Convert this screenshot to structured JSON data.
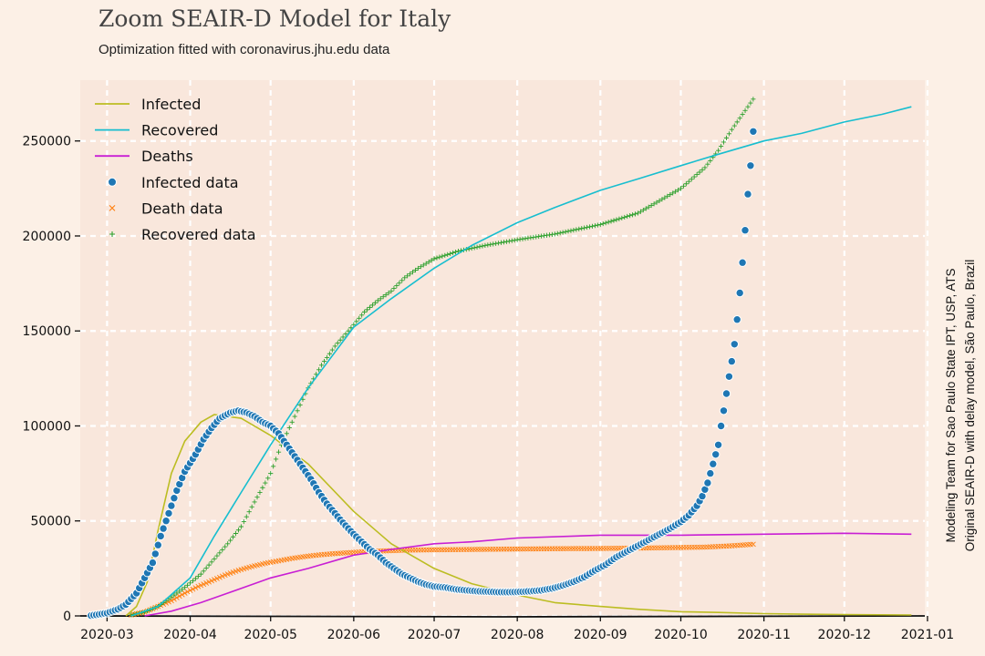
{
  "header": {
    "title": "Zoom SEAIR-D Model for Italy",
    "subtitle": "Optimization fitted with coronavirus.jhu.edu data"
  },
  "side_note": {
    "line1": "Modeling Team for Sao Paulo State IPT, USP, ATS",
    "line2": "Original SEAIR-D with delay model, São Paulo, Brazil"
  },
  "colors": {
    "background": "#fcf0e6",
    "plot_area": "#f9e7dc",
    "grid": "#ffffff",
    "infected_model": "#bcbd22",
    "recovered_model": "#17becf",
    "deaths_model": "#c81fd4",
    "infected_data": "#1f77b4",
    "death_data": "#ff7f0e",
    "recovered_data": "#2ca02c"
  },
  "chart_data": {
    "type": "line",
    "title": "Zoom SEAIR-D Model for Italy",
    "subtitle": "Optimization fitted with coronavirus.jhu.edu data",
    "xlabel": "",
    "ylabel": "",
    "x_axis": {
      "min": "2020-02-20",
      "max": "2020-12-31",
      "tick_labels": [
        "2020-03",
        "2020-04",
        "2020-05",
        "2020-06",
        "2020-07",
        "2020-08",
        "2020-09",
        "2020-10",
        "2020-11",
        "2020-12",
        "2021-01"
      ],
      "tick_dates": [
        "2020-03-01",
        "2020-04-01",
        "2020-05-01",
        "2020-06-01",
        "2020-07-01",
        "2020-08-01",
        "2020-09-01",
        "2020-10-01",
        "2020-11-01",
        "2020-12-01",
        "2021-01-01"
      ]
    },
    "ylim": [
      0,
      282000
    ],
    "yticks": [
      0,
      50000,
      100000,
      150000,
      200000,
      250000
    ],
    "ytick_labels": [
      "0",
      "50000",
      "100000",
      "150000",
      "200000",
      "250000"
    ],
    "grid": true,
    "legend_position": "top-left",
    "series": [
      {
        "name": "Infected",
        "kind": "line",
        "points": [
          [
            "2020-03-08",
            0
          ],
          [
            "2020-03-12",
            5000
          ],
          [
            "2020-03-16",
            18000
          ],
          [
            "2020-03-20",
            45000
          ],
          [
            "2020-03-25",
            75000
          ],
          [
            "2020-03-30",
            92000
          ],
          [
            "2020-04-05",
            102000
          ],
          [
            "2020-04-10",
            106000
          ],
          [
            "2020-04-20",
            104000
          ],
          [
            "2020-05-01",
            95000
          ],
          [
            "2020-05-15",
            80000
          ],
          [
            "2020-06-01",
            55000
          ],
          [
            "2020-06-15",
            38000
          ],
          [
            "2020-07-01",
            25000
          ],
          [
            "2020-07-15",
            17000
          ],
          [
            "2020-08-01",
            11000
          ],
          [
            "2020-08-15",
            7000
          ],
          [
            "2020-09-01",
            5000
          ],
          [
            "2020-09-15",
            3500
          ],
          [
            "2020-10-01",
            2200
          ],
          [
            "2020-10-15",
            1800
          ],
          [
            "2020-11-01",
            1200
          ],
          [
            "2020-11-15",
            900
          ],
          [
            "2020-12-01",
            700
          ],
          [
            "2020-12-26",
            500
          ]
        ]
      },
      {
        "name": "Recovered",
        "kind": "line",
        "points": [
          [
            "2020-03-10",
            0
          ],
          [
            "2020-03-20",
            5000
          ],
          [
            "2020-04-01",
            20000
          ],
          [
            "2020-04-10",
            42000
          ],
          [
            "2020-04-20",
            65000
          ],
          [
            "2020-05-01",
            90000
          ],
          [
            "2020-05-15",
            120000
          ],
          [
            "2020-06-01",
            152000
          ],
          [
            "2020-06-15",
            167000
          ],
          [
            "2020-07-01",
            183000
          ],
          [
            "2020-07-15",
            195000
          ],
          [
            "2020-08-01",
            207000
          ],
          [
            "2020-08-15",
            215000
          ],
          [
            "2020-09-01",
            224000
          ],
          [
            "2020-09-15",
            230000
          ],
          [
            "2020-10-01",
            237000
          ],
          [
            "2020-10-15",
            243000
          ],
          [
            "2020-11-01",
            250000
          ],
          [
            "2020-11-15",
            254000
          ],
          [
            "2020-12-01",
            260000
          ],
          [
            "2020-12-15",
            264000
          ],
          [
            "2020-12-26",
            268000
          ]
        ]
      },
      {
        "name": "Deaths",
        "kind": "line",
        "points": [
          [
            "2020-03-15",
            0
          ],
          [
            "2020-03-25",
            2500
          ],
          [
            "2020-04-05",
            7000
          ],
          [
            "2020-04-15",
            12000
          ],
          [
            "2020-05-01",
            20000
          ],
          [
            "2020-05-15",
            25000
          ],
          [
            "2020-06-01",
            32000
          ],
          [
            "2020-06-15",
            35000
          ],
          [
            "2020-07-01",
            38000
          ],
          [
            "2020-07-15",
            39000
          ],
          [
            "2020-08-01",
            41000
          ],
          [
            "2020-09-01",
            42500
          ],
          [
            "2020-10-01",
            42500
          ],
          [
            "2020-11-01",
            43000
          ],
          [
            "2020-12-01",
            43500
          ],
          [
            "2020-12-26",
            43000
          ]
        ]
      },
      {
        "name": "Infected data",
        "kind": "scatter",
        "marker": "circle",
        "points": [
          [
            "2020-02-24",
            200
          ],
          [
            "2020-03-01",
            1500
          ],
          [
            "2020-03-05",
            3500
          ],
          [
            "2020-03-08",
            6000
          ],
          [
            "2020-03-10",
            9000
          ],
          [
            "2020-03-12",
            12000
          ],
          [
            "2020-03-15",
            20000
          ],
          [
            "2020-03-18",
            28000
          ],
          [
            "2020-03-21",
            42000
          ],
          [
            "2020-03-24",
            54000
          ],
          [
            "2020-03-27",
            66000
          ],
          [
            "2020-03-30",
            76000
          ],
          [
            "2020-04-03",
            85000
          ],
          [
            "2020-04-06",
            93000
          ],
          [
            "2020-04-09",
            99000
          ],
          [
            "2020-04-12",
            104000
          ],
          [
            "2020-04-16",
            107000
          ],
          [
            "2020-04-19",
            108000
          ],
          [
            "2020-04-22",
            107000
          ],
          [
            "2020-04-25",
            105000
          ],
          [
            "2020-04-28",
            102000
          ],
          [
            "2020-05-01",
            100000
          ],
          [
            "2020-05-04",
            96000
          ],
          [
            "2020-05-07",
            90000
          ],
          [
            "2020-05-10",
            84000
          ],
          [
            "2020-05-13",
            78000
          ],
          [
            "2020-05-16",
            72000
          ],
          [
            "2020-05-19",
            65000
          ],
          [
            "2020-05-22",
            59000
          ],
          [
            "2020-05-25",
            54000
          ],
          [
            "2020-05-28",
            49000
          ],
          [
            "2020-06-01",
            43000
          ],
          [
            "2020-06-04",
            39000
          ],
          [
            "2020-06-07",
            35000
          ],
          [
            "2020-06-10",
            32000
          ],
          [
            "2020-06-13",
            28000
          ],
          [
            "2020-06-16",
            25000
          ],
          [
            "2020-06-19",
            22000
          ],
          [
            "2020-06-22",
            20000
          ],
          [
            "2020-06-25",
            18000
          ],
          [
            "2020-06-28",
            16500
          ],
          [
            "2020-07-01",
            15500
          ],
          [
            "2020-07-05",
            15000
          ],
          [
            "2020-07-09",
            14000
          ],
          [
            "2020-07-13",
            13500
          ],
          [
            "2020-07-17",
            13000
          ],
          [
            "2020-07-21",
            12800
          ],
          [
            "2020-07-25",
            12500
          ],
          [
            "2020-07-29",
            12500
          ],
          [
            "2020-08-02",
            12700
          ],
          [
            "2020-08-06",
            13000
          ],
          [
            "2020-08-10",
            13500
          ],
          [
            "2020-08-14",
            14500
          ],
          [
            "2020-08-18",
            16000
          ],
          [
            "2020-08-22",
            18000
          ],
          [
            "2020-08-26",
            20500
          ],
          [
            "2020-08-30",
            24000
          ],
          [
            "2020-09-03",
            27000
          ],
          [
            "2020-09-07",
            31000
          ],
          [
            "2020-09-11",
            34000
          ],
          [
            "2020-09-15",
            37000
          ],
          [
            "2020-09-19",
            40000
          ],
          [
            "2020-09-23",
            43000
          ],
          [
            "2020-09-27",
            46000
          ],
          [
            "2020-10-01",
            49500
          ],
          [
            "2020-10-04",
            53000
          ],
          [
            "2020-10-07",
            58000
          ],
          [
            "2020-10-09",
            63000
          ],
          [
            "2020-10-11",
            70000
          ],
          [
            "2020-10-13",
            80000
          ],
          [
            "2020-10-15",
            90000
          ],
          [
            "2020-10-16",
            100000
          ],
          [
            "2020-10-17",
            108000
          ],
          [
            "2020-10-18",
            117000
          ],
          [
            "2020-10-19",
            126000
          ],
          [
            "2020-10-20",
            134000
          ],
          [
            "2020-10-21",
            143000
          ],
          [
            "2020-10-22",
            156000
          ],
          [
            "2020-10-23",
            170000
          ],
          [
            "2020-10-24",
            186000
          ],
          [
            "2020-10-25",
            203000
          ],
          [
            "2020-10-26",
            222000
          ],
          [
            "2020-10-27",
            237000
          ],
          [
            "2020-10-28",
            255000
          ]
        ]
      },
      {
        "name": "Death data",
        "kind": "scatter",
        "marker": "x",
        "points": [
          [
            "2020-03-10",
            500
          ],
          [
            "2020-03-15",
            2000
          ],
          [
            "2020-03-20",
            5000
          ],
          [
            "2020-03-25",
            8000
          ],
          [
            "2020-03-30",
            12000
          ],
          [
            "2020-04-04",
            15500
          ],
          [
            "2020-04-09",
            18500
          ],
          [
            "2020-04-14",
            21500
          ],
          [
            "2020-04-19",
            24000
          ],
          [
            "2020-04-24",
            26000
          ],
          [
            "2020-04-29",
            27700
          ],
          [
            "2020-05-04",
            29000
          ],
          [
            "2020-05-09",
            30300
          ],
          [
            "2020-05-14",
            31300
          ],
          [
            "2020-05-19",
            32100
          ],
          [
            "2020-05-24",
            32700
          ],
          [
            "2020-05-29",
            33200
          ],
          [
            "2020-06-03",
            33600
          ],
          [
            "2020-06-10",
            34100
          ],
          [
            "2020-06-20",
            34600
          ],
          [
            "2020-07-01",
            34800
          ],
          [
            "2020-07-15",
            35000
          ],
          [
            "2020-08-01",
            35200
          ],
          [
            "2020-08-15",
            35400
          ],
          [
            "2020-09-01",
            35500
          ],
          [
            "2020-09-15",
            35700
          ],
          [
            "2020-10-01",
            36000
          ],
          [
            "2020-10-10",
            36200
          ],
          [
            "2020-10-20",
            36900
          ],
          [
            "2020-10-28",
            37700
          ]
        ]
      },
      {
        "name": "Recovered data",
        "kind": "scatter",
        "marker": "plus",
        "points": [
          [
            "2020-03-10",
            500
          ],
          [
            "2020-03-15",
            2000
          ],
          [
            "2020-03-20",
            5000
          ],
          [
            "2020-03-25",
            10000
          ],
          [
            "2020-03-30",
            15000
          ],
          [
            "2020-04-05",
            22000
          ],
          [
            "2020-04-10",
            30000
          ],
          [
            "2020-04-15",
            38000
          ],
          [
            "2020-04-20",
            47000
          ],
          [
            "2020-04-25",
            60000
          ],
          [
            "2020-05-01",
            75000
          ],
          [
            "2020-05-05",
            90000
          ],
          [
            "2020-05-10",
            105000
          ],
          [
            "2020-05-15",
            120000
          ],
          [
            "2020-05-20",
            132000
          ],
          [
            "2020-05-25",
            142000
          ],
          [
            "2020-05-30",
            150000
          ],
          [
            "2020-06-05",
            160000
          ],
          [
            "2020-06-10",
            166000
          ],
          [
            "2020-06-15",
            171000
          ],
          [
            "2020-06-20",
            178000
          ],
          [
            "2020-06-25",
            183000
          ],
          [
            "2020-07-01",
            188000
          ],
          [
            "2020-07-10",
            192000
          ],
          [
            "2020-07-20",
            195000
          ],
          [
            "2020-08-01",
            198000
          ],
          [
            "2020-08-15",
            201000
          ],
          [
            "2020-09-01",
            206000
          ],
          [
            "2020-09-15",
            212000
          ],
          [
            "2020-10-01",
            225000
          ],
          [
            "2020-10-10",
            236000
          ],
          [
            "2020-10-15",
            245000
          ],
          [
            "2020-10-20",
            256000
          ],
          [
            "2020-10-25",
            266000
          ],
          [
            "2020-10-28",
            272000
          ]
        ]
      }
    ]
  }
}
